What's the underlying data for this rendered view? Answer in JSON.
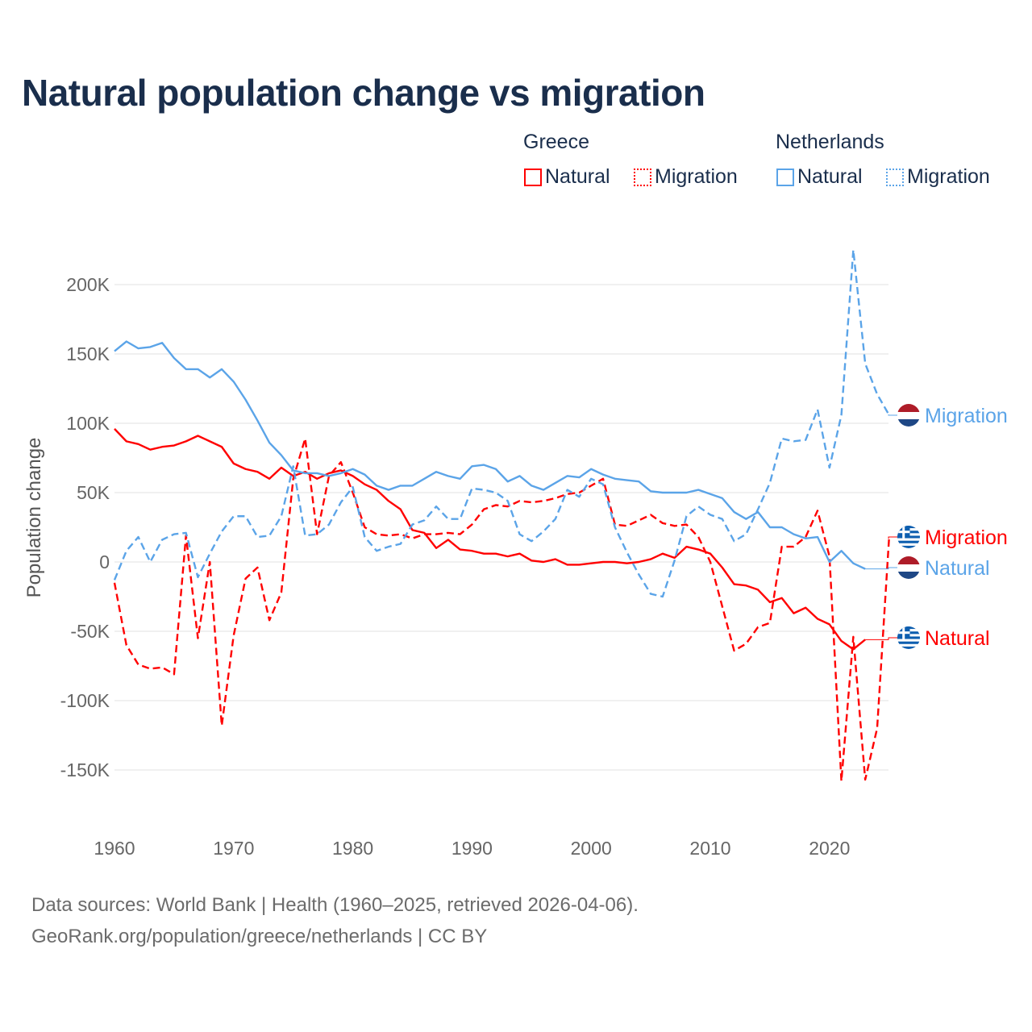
{
  "title": "Natural population change vs migration",
  "legend": {
    "groups": [
      {
        "name": "Greece",
        "items": [
          {
            "label": "Natural",
            "style": "solid"
          },
          {
            "label": "Migration",
            "style": "dotted"
          }
        ],
        "color": "#ff0000"
      },
      {
        "name": "Netherlands",
        "items": [
          {
            "label": "Natural",
            "style": "solid"
          },
          {
            "label": "Migration",
            "style": "dotted"
          }
        ],
        "color": "#5ba4e8"
      }
    ]
  },
  "footer": {
    "line1": "Data sources: World Bank | Health (1960–2025, retrieved 2026-04-06).",
    "line2": "GeoRank.org/population/greece/netherlands | CC BY"
  },
  "chart_data": {
    "type": "line",
    "title": "Natural population change vs migration",
    "xlabel": "",
    "ylabel": "Population change",
    "xlim": [
      1960,
      2025
    ],
    "ylim": [
      -160000,
      230000
    ],
    "x_ticks": [
      "1960",
      "1970",
      "1980",
      "1990",
      "2000",
      "2010",
      "2020"
    ],
    "y_ticks": [
      {
        "value": 200000,
        "label": "200K"
      },
      {
        "value": 150000,
        "label": "150K"
      },
      {
        "value": 100000,
        "label": "100K"
      },
      {
        "value": 50000,
        "label": "50K"
      },
      {
        "value": 0,
        "label": "0"
      },
      {
        "value": -50000,
        "label": "-50K"
      },
      {
        "value": -100000,
        "label": "-100K"
      },
      {
        "value": -150000,
        "label": "-150K"
      }
    ],
    "grid": true,
    "x_start": 1960,
    "series": [
      {
        "name": "Greece Natural",
        "end_label": "Natural",
        "country": "greece",
        "color": "#ff0000",
        "dashed": false,
        "unit": 1000,
        "values": [
          96,
          87,
          85,
          81,
          83,
          84,
          87,
          91,
          87,
          83,
          71,
          67,
          65,
          60,
          68,
          62,
          65,
          60,
          64,
          66,
          62,
          56,
          52,
          44,
          38,
          23,
          21,
          10,
          16,
          9,
          8,
          6,
          6,
          4,
          6,
          1,
          0,
          2,
          -2,
          -2,
          -1,
          0,
          0,
          -1,
          0,
          2,
          6,
          3,
          11,
          9,
          6,
          -4,
          -16,
          -17,
          -20,
          -29,
          -26,
          -37,
          -33,
          -41,
          -45,
          -57,
          -63,
          -56
        ]
      },
      {
        "name": "Greece Migration",
        "end_label": "Migration",
        "country": "greece",
        "color": "#ff0000",
        "dashed": true,
        "unit": 1000,
        "values": [
          -15,
          -60,
          -74,
          -77,
          -76,
          -81,
          19,
          -55,
          0,
          -118,
          -53,
          -12,
          -4,
          -42,
          -22,
          60,
          89,
          20,
          62,
          72,
          50,
          25,
          20,
          19,
          20,
          17,
          20,
          20,
          21,
          20,
          27,
          38,
          41,
          40,
          44,
          43,
          44,
          46,
          49,
          50,
          55,
          60,
          27,
          26,
          30,
          34,
          28,
          26,
          27,
          18,
          0,
          -32,
          -64,
          -59,
          -47,
          -44,
          11,
          11,
          18,
          37,
          4,
          -158,
          -54,
          -157,
          -120,
          17
        ]
      },
      {
        "name": "Netherlands Natural",
        "end_label": "Natural",
        "country": "netherlands",
        "color": "#5ba4e8",
        "dashed": false,
        "unit": 1000,
        "values": [
          152,
          159,
          154,
          155,
          158,
          147,
          139,
          139,
          133,
          139,
          130,
          117,
          102,
          86,
          77,
          66,
          64,
          64,
          62,
          64,
          67,
          63,
          55,
          52,
          55,
          55,
          60,
          65,
          62,
          60,
          69,
          70,
          67,
          58,
          62,
          55,
          52,
          57,
          62,
          61,
          67,
          63,
          60,
          59,
          58,
          51,
          50,
          50,
          50,
          52,
          49,
          46,
          36,
          31,
          36,
          25,
          25,
          20,
          17,
          18,
          0,
          8,
          -1,
          -5
        ]
      },
      {
        "name": "Netherlands Migration",
        "end_label": "Migration",
        "country": "netherlands",
        "color": "#5ba4e8",
        "dashed": true,
        "unit": 1000,
        "values": [
          -13,
          8,
          18,
          0,
          16,
          20,
          21,
          -11,
          6,
          22,
          33,
          33,
          18,
          19,
          33,
          69,
          19,
          20,
          27,
          43,
          54,
          18,
          8,
          11,
          13,
          27,
          30,
          40,
          31,
          31,
          53,
          52,
          50,
          44,
          20,
          15,
          22,
          31,
          52,
          47,
          60,
          56,
          25,
          7,
          -9,
          -23,
          -25,
          1,
          33,
          40,
          34,
          31,
          15,
          20,
          38,
          57,
          89,
          87,
          88,
          110,
          68,
          106,
          225,
          143,
          121,
          106
        ]
      }
    ]
  }
}
